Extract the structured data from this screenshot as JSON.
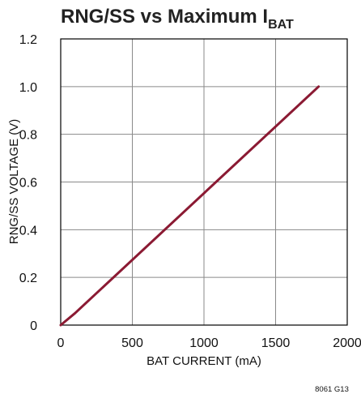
{
  "chart_data": {
    "type": "line",
    "title": "RNG/SS vs Maximum I",
    "title_subscript": "BAT",
    "xlabel": "BAT CURRENT (mA)",
    "ylabel": "RNG/SS VOLTAGE (V)",
    "xlim": [
      0,
      2000
    ],
    "ylim": [
      0,
      1.2
    ],
    "x_ticks": [
      0,
      500,
      1000,
      1500,
      2000
    ],
    "x_tick_labels": [
      "0",
      "500",
      "1000",
      "1500",
      "2000"
    ],
    "y_ticks": [
      0,
      0.2,
      0.4,
      0.6,
      0.8,
      1.0,
      1.2
    ],
    "y_tick_labels": [
      "0",
      "0.2",
      "0.4",
      "0.6",
      "0.8",
      "1.0",
      "1.2"
    ],
    "grid": true,
    "series": [
      {
        "color": "#8b1a33",
        "x": [
          0,
          100,
          1800
        ],
        "y": [
          0,
          0.05,
          1.0
        ]
      }
    ],
    "figure_id": "8061 G13"
  }
}
